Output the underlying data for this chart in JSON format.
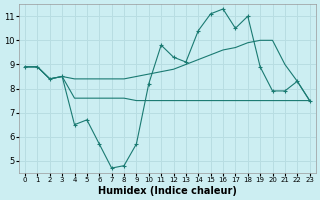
{
  "xlabel": "Humidex (Indice chaleur)",
  "bg_color": "#cceef2",
  "grid_color": "#b8dde2",
  "line_color": "#1a7a72",
  "xlim": [
    -0.5,
    23.5
  ],
  "ylim": [
    4.5,
    11.5
  ],
  "xticks": [
    0,
    1,
    2,
    3,
    4,
    5,
    6,
    7,
    8,
    9,
    10,
    11,
    12,
    13,
    14,
    15,
    16,
    17,
    18,
    19,
    20,
    21,
    22,
    23
  ],
  "yticks": [
    5,
    6,
    7,
    8,
    9,
    10,
    11
  ],
  "line1_x": [
    0,
    1,
    2,
    3,
    4,
    5,
    6,
    7,
    8,
    9,
    10,
    11,
    12,
    13,
    14,
    15,
    16,
    17,
    18,
    19,
    20,
    21,
    22,
    23
  ],
  "line1_y": [
    8.9,
    8.9,
    8.4,
    8.5,
    6.5,
    6.7,
    5.7,
    4.7,
    4.8,
    5.7,
    8.2,
    9.8,
    9.3,
    9.1,
    10.4,
    11.1,
    11.3,
    10.5,
    11.0,
    8.9,
    7.9,
    7.9,
    8.3,
    7.5
  ],
  "line2_x": [
    0,
    1,
    2,
    3,
    4,
    5,
    6,
    7,
    8,
    9,
    10,
    11,
    12,
    13,
    14,
    15,
    16,
    17,
    18,
    19,
    20,
    21,
    22,
    23
  ],
  "line2_y": [
    8.9,
    8.9,
    8.4,
    8.5,
    8.4,
    8.4,
    8.4,
    8.4,
    8.4,
    8.5,
    8.6,
    8.7,
    8.8,
    9.0,
    9.2,
    9.4,
    9.6,
    9.7,
    9.9,
    10.0,
    10.0,
    9.0,
    8.3,
    7.5
  ],
  "line3_x": [
    0,
    1,
    2,
    3,
    4,
    5,
    6,
    7,
    8,
    9,
    10,
    11,
    12,
    13,
    14,
    15,
    16,
    17,
    18,
    19,
    20,
    21,
    22,
    23
  ],
  "line3_y": [
    8.9,
    8.9,
    8.4,
    8.5,
    7.6,
    7.6,
    7.6,
    7.6,
    7.6,
    7.5,
    7.5,
    7.5,
    7.5,
    7.5,
    7.5,
    7.5,
    7.5,
    7.5,
    7.5,
    7.5,
    7.5,
    7.5,
    7.5,
    7.5
  ]
}
